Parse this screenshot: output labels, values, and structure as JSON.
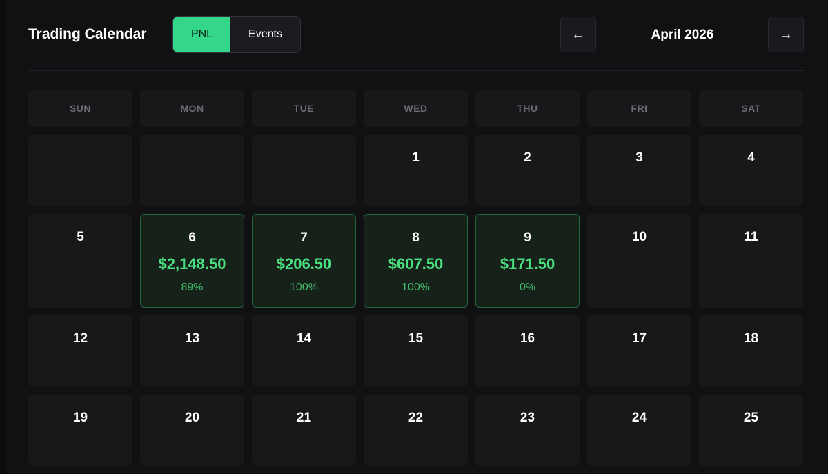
{
  "header": {
    "title": "Trading Calendar",
    "tabs": [
      "PNL",
      "Events"
    ],
    "active_tab": "PNL",
    "prev": "←",
    "month": "April 2026",
    "next": "→"
  },
  "calendar": {
    "weekdays": [
      "SUN",
      "MON",
      "TUE",
      "WED",
      "THU",
      "FRI",
      "SAT"
    ],
    "weeks": [
      [
        null,
        null,
        null,
        {
          "day": 1
        },
        {
          "day": 2
        },
        {
          "day": 3
        },
        {
          "day": 4
        }
      ],
      [
        {
          "day": 5
        },
        {
          "day": 6,
          "pnl": "$2,148.50",
          "win_rate": "89%"
        },
        {
          "day": 7,
          "pnl": "$206.50",
          "win_rate": "100%"
        },
        {
          "day": 8,
          "pnl": "$607.50",
          "win_rate": "100%"
        },
        {
          "day": 9,
          "pnl": "$171.50",
          "win_rate": "0%"
        },
        {
          "day": 10
        },
        {
          "day": 11
        }
      ],
      [
        {
          "day": 12
        },
        {
          "day": 13
        },
        {
          "day": 14
        },
        {
          "day": 15
        },
        {
          "day": 16
        },
        {
          "day": 17
        },
        {
          "day": 18
        }
      ],
      [
        {
          "day": 19
        },
        {
          "day": 20
        },
        {
          "day": 21
        },
        {
          "day": 22
        },
        {
          "day": 23
        },
        {
          "day": 24
        },
        {
          "day": 25
        }
      ]
    ]
  }
}
